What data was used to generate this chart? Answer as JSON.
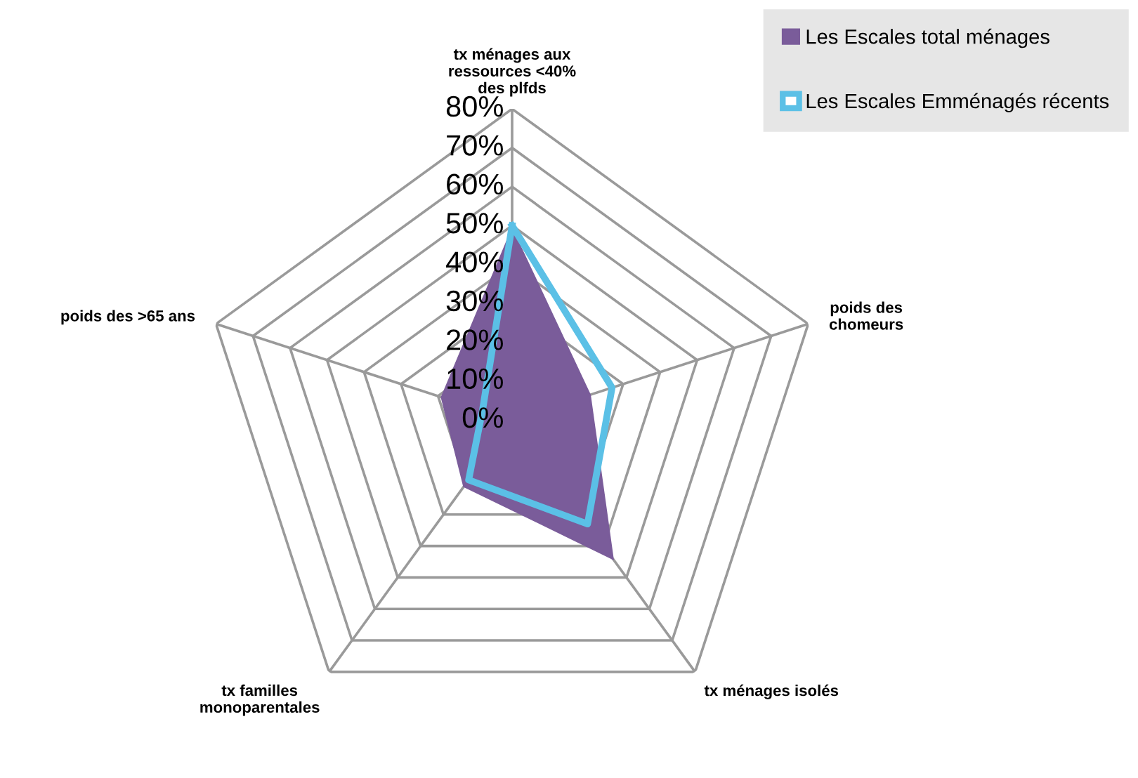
{
  "chart_data": {
    "type": "radar",
    "categories": [
      "tx ménages aux\nressources <40%\ndes plfds",
      "poids des\nchomeurs",
      "tx ménages isolés",
      "tx familles\nmonoparentales",
      "poids des >65 ans"
    ],
    "series": [
      {
        "name": "Les Escales total ménages",
        "color": "#7a5c9a",
        "values": [
          49,
          21,
          44,
          21,
          19
        ]
      },
      {
        "name": "Les Escales Emménagés récents",
        "color": "#5bc0e6",
        "values": [
          50,
          27,
          33,
          19,
          8
        ]
      }
    ],
    "ylim": [
      0,
      80
    ],
    "yticks": [
      {
        "value": 0,
        "label": "0%"
      },
      {
        "value": 10,
        "label": "10%"
      },
      {
        "value": 20,
        "label": "20%"
      },
      {
        "value": 30,
        "label": "30%"
      },
      {
        "value": 40,
        "label": "40%"
      },
      {
        "value": 50,
        "label": "50%"
      },
      {
        "value": 60,
        "label": "60%"
      },
      {
        "value": 70,
        "label": "70%"
      },
      {
        "value": 80,
        "label": "80%"
      }
    ],
    "grid": true,
    "legend": "top right"
  }
}
